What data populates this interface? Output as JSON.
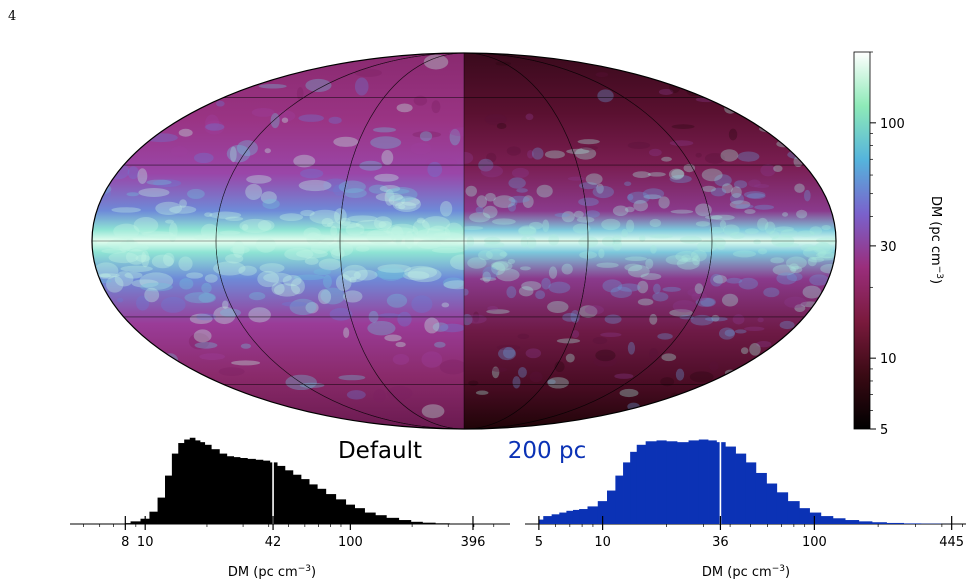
{
  "page_number": "4",
  "chart_data": [
    {
      "type": "heatmap",
      "title": "",
      "projection": "mollweide",
      "panels": [
        {
          "label": "Default",
          "label_color": "#000000"
        },
        {
          "label": "200 pc",
          "label_color": "#0b32b5"
        }
      ],
      "colorbar": {
        "label_parts": [
          "DM (pc cm",
          "−3",
          ")"
        ],
        "scale": "log",
        "range": [
          5,
          200
        ],
        "ticks": [
          5,
          10,
          30,
          100
        ],
        "tick_labels": [
          "5",
          "10",
          "30",
          "100"
        ],
        "colormap": [
          "#000000",
          "#3a0a14",
          "#7a1a3d",
          "#9a2e7c",
          "#7a62cc",
          "#55b4dc",
          "#8eeab8",
          "#ffffff"
        ]
      }
    },
    {
      "type": "bar",
      "name": "Default",
      "xscale": "log",
      "xlim": [
        4.3,
        600
      ],
      "color": "#000000",
      "xlabel_parts": [
        "DM (pc cm",
        "−3",
        ")"
      ],
      "x_ticks": [
        8,
        10,
        42,
        100,
        396
      ],
      "x_tick_labels": [
        "8",
        "10",
        "42",
        "100",
        "396"
      ],
      "min_value": 8,
      "median": 42,
      "max_value": 396,
      "x": [
        8,
        9,
        10,
        11,
        12,
        13,
        14,
        15,
        16,
        17,
        18,
        19,
        20,
        22,
        24,
        26,
        28,
        30,
        33,
        36,
        39,
        42,
        46,
        50,
        55,
        60,
        66,
        72,
        80,
        90,
        100,
        110,
        125,
        140,
        160,
        185,
        210,
        240,
        280,
        330,
        396
      ],
      "values": [
        0.01,
        0.03,
        0.06,
        0.14,
        0.3,
        0.55,
        0.8,
        0.92,
        0.96,
        0.98,
        0.95,
        0.93,
        0.9,
        0.85,
        0.8,
        0.77,
        0.76,
        0.75,
        0.74,
        0.73,
        0.72,
        0.7,
        0.66,
        0.61,
        0.56,
        0.51,
        0.45,
        0.4,
        0.34,
        0.28,
        0.22,
        0.18,
        0.13,
        0.1,
        0.07,
        0.045,
        0.025,
        0.015,
        0.008,
        0.004,
        0.001
      ]
    },
    {
      "type": "bar",
      "name": "200 pc",
      "xscale": "log",
      "xlim": [
        4.3,
        520
      ],
      "color": "#0b32b5",
      "xlabel_parts": [
        "DM (pc cm",
        "−3",
        ")"
      ],
      "x_ticks": [
        5,
        10,
        36,
        100,
        445
      ],
      "x_tick_labels": [
        "5",
        "10",
        "36",
        "100",
        "445"
      ],
      "min_value": 5,
      "median": 36,
      "max_value": 445,
      "x": [
        5,
        5.5,
        6,
        6.5,
        7,
        7.5,
        8,
        9,
        10,
        11,
        12,
        13,
        14,
        15,
        17,
        19,
        21,
        24,
        27,
        30,
        33,
        36,
        40,
        45,
        50,
        56,
        63,
        70,
        80,
        90,
        100,
        115,
        130,
        150,
        175,
        200,
        240,
        290,
        350,
        445
      ],
      "values": [
        0.05,
        0.09,
        0.11,
        0.13,
        0.15,
        0.16,
        0.17,
        0.2,
        0.26,
        0.38,
        0.55,
        0.7,
        0.82,
        0.9,
        0.94,
        0.95,
        0.94,
        0.93,
        0.95,
        0.96,
        0.95,
        0.93,
        0.88,
        0.8,
        0.7,
        0.58,
        0.46,
        0.36,
        0.26,
        0.18,
        0.13,
        0.09,
        0.065,
        0.045,
        0.03,
        0.02,
        0.012,
        0.007,
        0.004,
        0.001
      ]
    }
  ]
}
